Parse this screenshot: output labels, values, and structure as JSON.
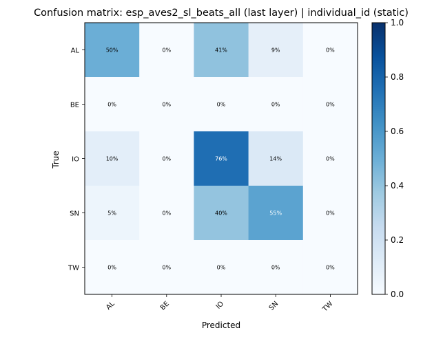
{
  "chart_data": {
    "type": "heatmap",
    "title": "Confusion matrix: esp_aves2_sl_beats_all (last layer) | individual_id (static)",
    "xlabel": "Predicted",
    "ylabel": "True",
    "x_categories": [
      "AL",
      "BE",
      "IO",
      "SN",
      "TW"
    ],
    "y_categories": [
      "AL",
      "BE",
      "IO",
      "SN",
      "TW"
    ],
    "values": [
      [
        0.5,
        0.0,
        0.41,
        0.09,
        0.0
      ],
      [
        0.0,
        0.0,
        0.0,
        0.0,
        0.0
      ],
      [
        0.1,
        0.0,
        0.76,
        0.14,
        0.0
      ],
      [
        0.05,
        0.0,
        0.4,
        0.55,
        0.0
      ],
      [
        0.0,
        0.0,
        0.0,
        0.0,
        0.0
      ]
    ],
    "cell_labels": [
      [
        "50%",
        "0%",
        "41%",
        "9%",
        "0%"
      ],
      [
        "0%",
        "0%",
        "0%",
        "0%",
        "0%"
      ],
      [
        "10%",
        "0%",
        "76%",
        "14%",
        "0%"
      ],
      [
        "5%",
        "0%",
        "40%",
        "55%",
        "0%"
      ],
      [
        "0%",
        "0%",
        "0%",
        "0%",
        "0%"
      ]
    ],
    "colormap": "Blues",
    "colorbar": {
      "range": [
        0,
        1
      ],
      "ticks": [
        0.0,
        0.2,
        0.4,
        0.6,
        0.8,
        1.0
      ],
      "tick_labels": [
        "0.0",
        "0.2",
        "0.4",
        "0.6",
        "0.8",
        "1.0"
      ]
    },
    "grid": false
  }
}
